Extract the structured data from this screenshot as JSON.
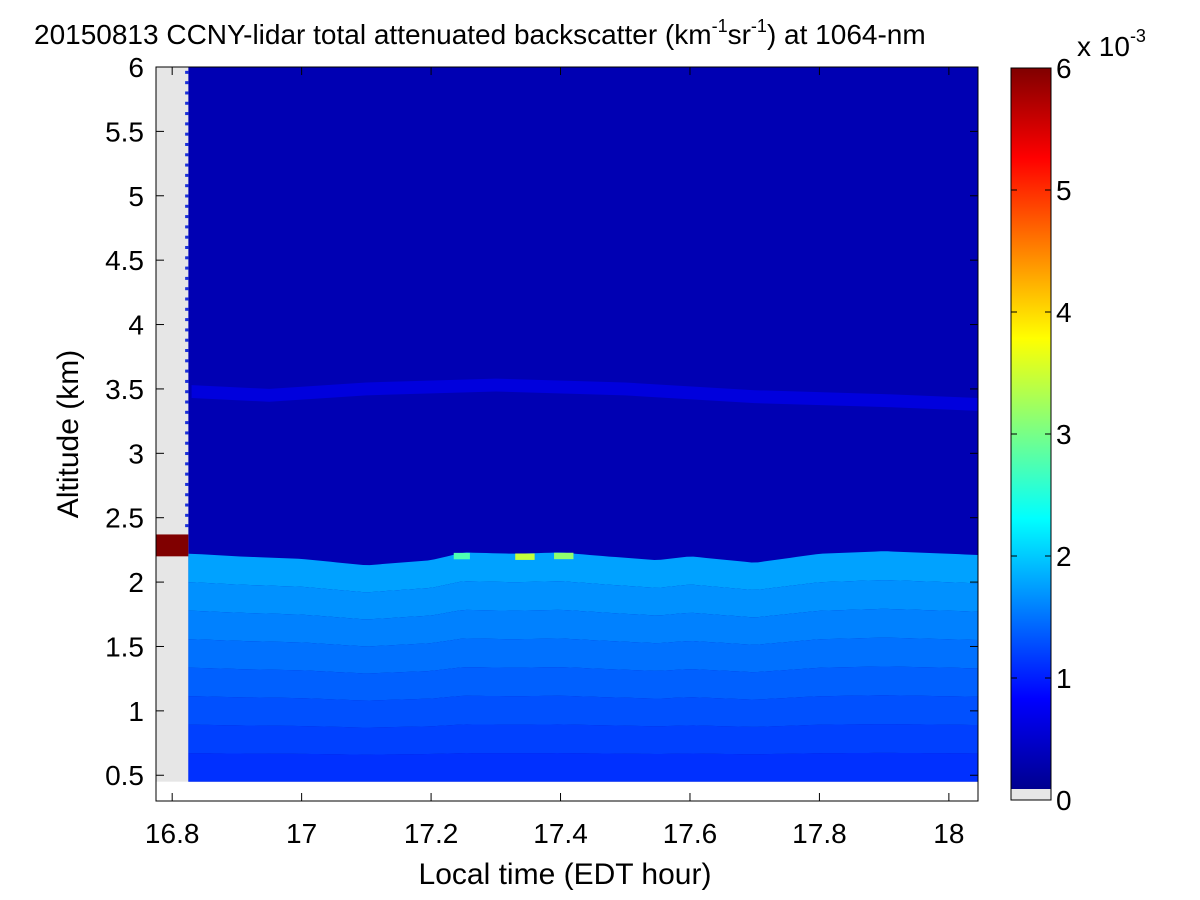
{
  "chart_data": {
    "type": "heatmap",
    "title": {
      "prefix": "20150813 CCNY-lidar total attenuated backscatter (km",
      "exp1": "-1",
      "mid": "sr",
      "exp2": "-1",
      "suffix": ") at 1064-nm"
    },
    "xlabel": "Local time (EDT hour)",
    "ylabel": "Altitude (km)",
    "xlim": [
      16.775,
      18.045
    ],
    "ylim": [
      0.3,
      6.0
    ],
    "xticks": [
      16.8,
      17,
      17.2,
      17.4,
      17.6,
      17.8,
      18
    ],
    "xtick_labels": [
      "16.8",
      "17",
      "17.2",
      "17.4",
      "17.6",
      "17.8",
      "18"
    ],
    "yticks": [
      0.5,
      1,
      1.5,
      2,
      2.5,
      3,
      3.5,
      4,
      4.5,
      5,
      5.5,
      6
    ],
    "ytick_labels": [
      "0.5",
      "1",
      "1.5",
      "2",
      "2.5",
      "3",
      "3.5",
      "4",
      "4.5",
      "5",
      "5.5",
      "6"
    ],
    "data_extent": {
      "x": [
        16.825,
        18.045
      ],
      "y": [
        0.45,
        6.0
      ]
    },
    "colorbar": {
      "colormap": "jet",
      "clim": [
        0,
        6
      ],
      "ticks": [
        0,
        1,
        2,
        3,
        4,
        5,
        6
      ],
      "tick_labels": [
        "0",
        "1",
        "2",
        "3",
        "4",
        "5",
        "6"
      ],
      "scale_base": "x 10",
      "scale_exp": "-3",
      "nodata_color": "#e6e6e6"
    },
    "layers": {
      "boundary_layer_top": [
        [
          16.83,
          2.22
        ],
        [
          16.9,
          2.2
        ],
        [
          17.0,
          2.18
        ],
        [
          17.1,
          2.13
        ],
        [
          17.2,
          2.17
        ],
        [
          17.25,
          2.23
        ],
        [
          17.33,
          2.22
        ],
        [
          17.4,
          2.23
        ],
        [
          17.47,
          2.2
        ],
        [
          17.55,
          2.17
        ],
        [
          17.6,
          2.2
        ],
        [
          17.7,
          2.15
        ],
        [
          17.8,
          2.22
        ],
        [
          17.9,
          2.24
        ],
        [
          18.0,
          2.22
        ],
        [
          18.045,
          2.21
        ]
      ],
      "boundary_layer_value": 1.7,
      "aerosol_layer": [
        [
          16.83,
          3.48
        ],
        [
          16.95,
          3.45
        ],
        [
          17.1,
          3.5
        ],
        [
          17.3,
          3.53
        ],
        [
          17.5,
          3.5
        ],
        [
          17.7,
          3.44
        ],
        [
          17.9,
          3.41
        ],
        [
          18.045,
          3.38
        ]
      ],
      "aerosol_layer_value": 0.55,
      "free_troposphere_value": 0.3,
      "pbl_top_peaks": [
        {
          "x": [
            17.235,
            17.26
          ],
          "value": 2.7
        },
        {
          "x": [
            17.33,
            17.36
          ],
          "value": 3.4
        },
        {
          "x": [
            17.39,
            17.42
          ],
          "value": 3.1
        }
      ],
      "near_start_column": {
        "x": [
          16.775,
          16.825
        ],
        "y": [
          2.2,
          2.37
        ],
        "value": 6.0
      }
    }
  }
}
